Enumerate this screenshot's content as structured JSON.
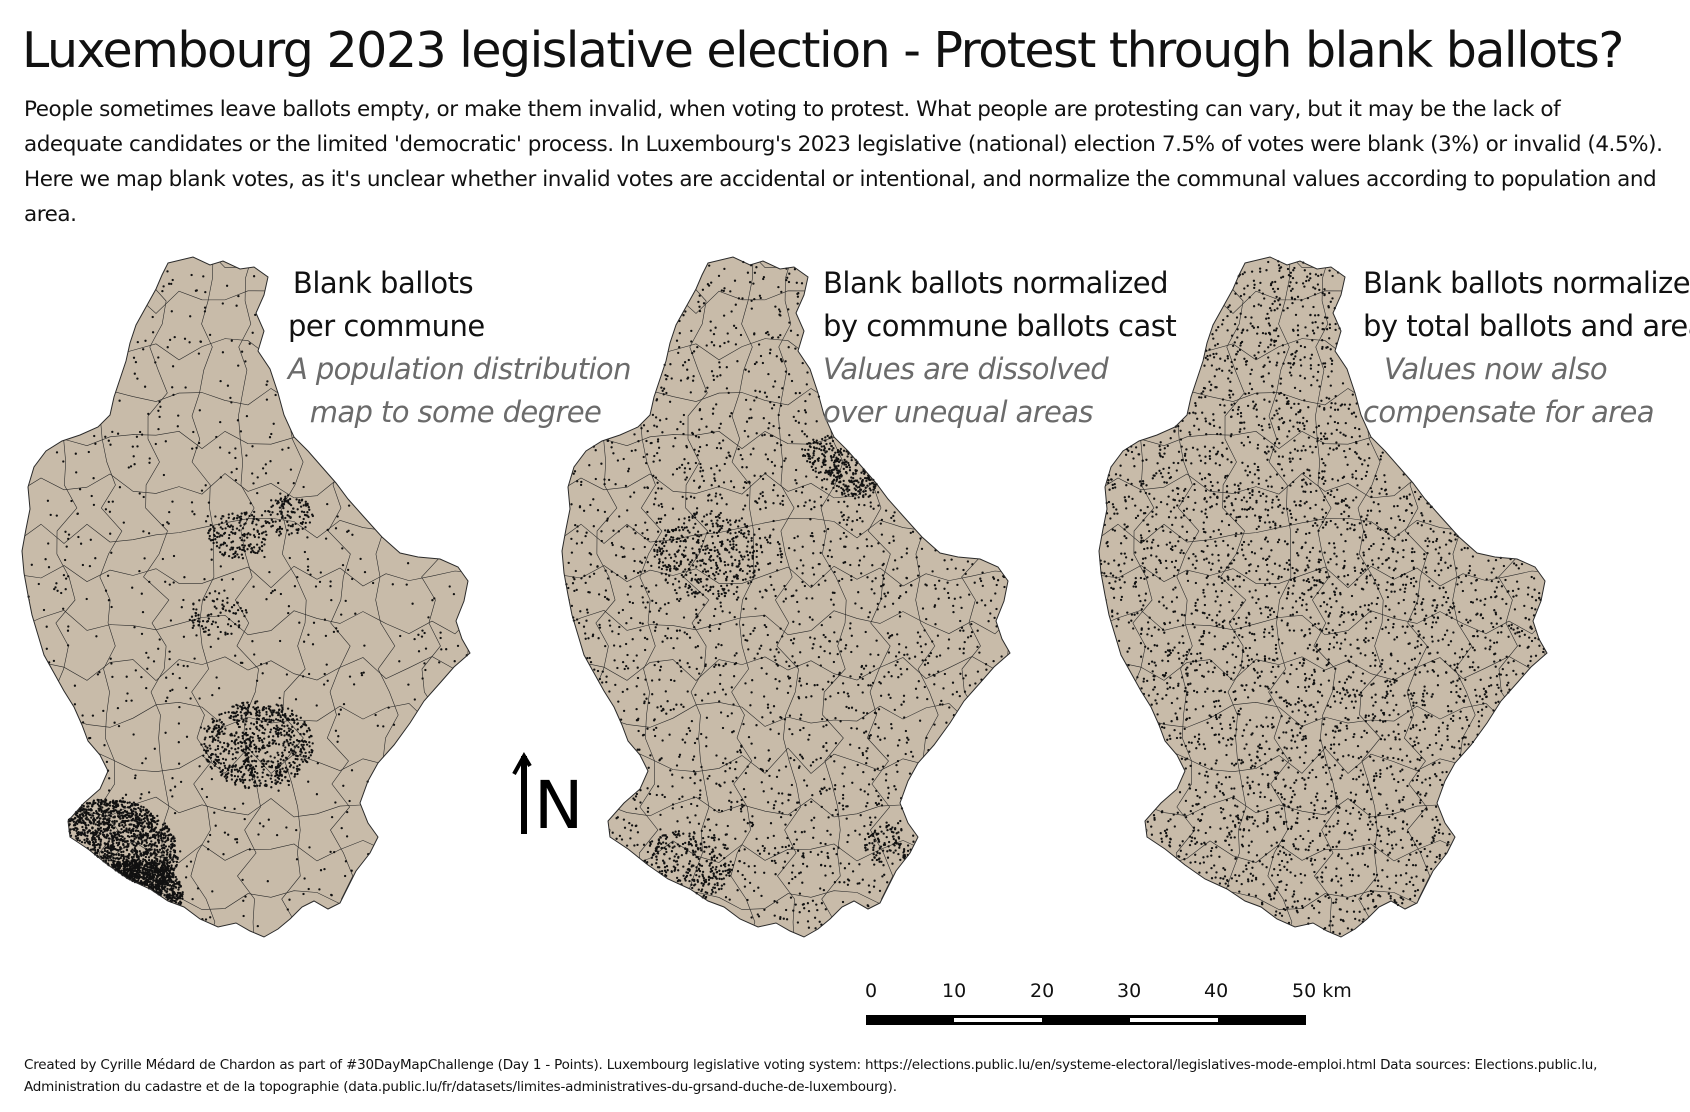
{
  "title": "Luxembourg 2023 legislative election - Protest through blank ballots?",
  "intro": "People sometimes leave ballots empty, or make them invalid, when voting to protest. What people are protesting can vary, but it may be the lack of adequate candidates or the limited 'democratic' process. In Luxembourg's 2023 legislative (national) election 7.5% of votes were blank (3%) or invalid (4.5%). Here we map blank votes, as it's unclear whether invalid votes are accidental or intentional, and normalize the communal values according to population and area.",
  "panels": [
    {
      "title_line1": "Blank ballots",
      "title_line2": "per commune",
      "subtitle_line1": "A population distribution",
      "subtitle_line2": "map to some degree",
      "dot_pattern": "population-weighted"
    },
    {
      "title_line1": "Blank ballots normalized",
      "title_line2": "by commune ballots cast",
      "subtitle_line1": "Values are dissolved",
      "subtitle_line2": "over unequal areas",
      "dot_pattern": "rate-per-commune"
    },
    {
      "title_line1": "Blank ballots normalized",
      "title_line2": "by total ballots and area",
      "subtitle_line1": "Values now also",
      "subtitle_line2": "compensate for area",
      "dot_pattern": "uniform-density"
    }
  ],
  "north_arrow": {
    "label": "N"
  },
  "scale": {
    "ticks": [
      "0",
      "10",
      "20",
      "30",
      "40"
    ],
    "last": "50 km"
  },
  "colors": {
    "land": "#c8bba9",
    "border": "#2a2a2a",
    "dots": "#111111",
    "subtitle": "#6b6b6b"
  },
  "footer": "Created by  Cyrille Médard de Chardon as part of #30DayMapChallenge (Day 1 - Points). Luxembourg legislative voting system: https://elections.public.lu/en/systeme-electoral/legislatives-mode-emploi.html Data sources: Elections.public.lu, Administration du cadastre et de la topographie  (data.public.lu/fr/datasets/limites-administratives-du-grsand-duche-de-luxembourg)."
}
